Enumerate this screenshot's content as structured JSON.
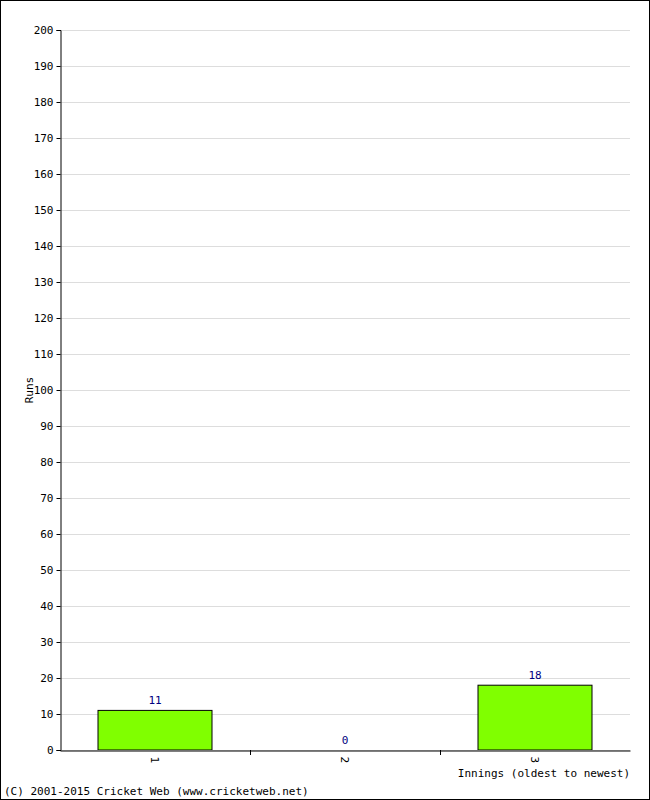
{
  "chart_data": {
    "type": "bar",
    "categories": [
      "1",
      "2",
      "3"
    ],
    "values": [
      11,
      0,
      18
    ],
    "color": "#80ff00",
    "ylim": [
      0,
      200
    ],
    "yticks": [
      0,
      10,
      20,
      30,
      40,
      50,
      60,
      70,
      80,
      90,
      100,
      110,
      120,
      130,
      140,
      150,
      160,
      170,
      180,
      190,
      200
    ],
    "grid": true,
    "data_labels": true,
    "x_label": "Innings (oldest to newest)",
    "y_label": "Runs",
    "annotation": "(C) 2001-2015 Cricket Web (www.cricketweb.net)"
  }
}
